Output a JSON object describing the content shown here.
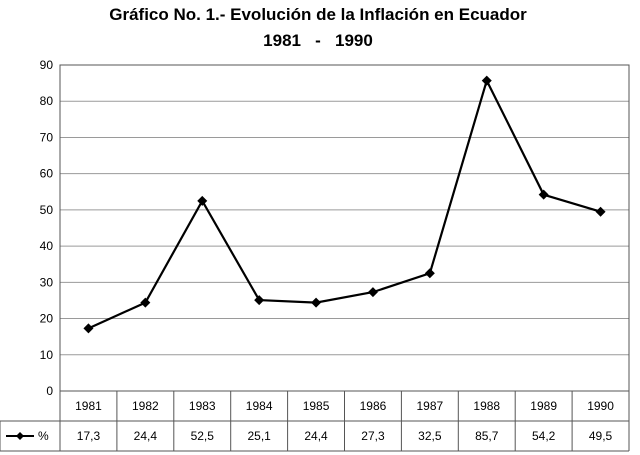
{
  "chart_data": {
    "type": "line",
    "title": "Gráfico No. 1.- Evolución de la Inflación en Ecuador",
    "subtitle": "1981   -   1990",
    "ylim": [
      0,
      90
    ],
    "yticks": [
      "0",
      "10",
      "20",
      "30",
      "40",
      "50",
      "60",
      "70",
      "80",
      "90"
    ],
    "grid": true,
    "legend": "data-table-left",
    "categories": [
      "1981",
      "1982",
      "1983",
      "1984",
      "1985",
      "1986",
      "1987",
      "1988",
      "1989",
      "1990"
    ],
    "series": [
      {
        "name": "%",
        "values": [
          17.3,
          24.4,
          52.5,
          25.1,
          24.4,
          27.3,
          32.5,
          85.7,
          54.2,
          49.5
        ],
        "labels": [
          "17,3",
          "24,4",
          "52,5",
          "25,1",
          "24,4",
          "27,3",
          "32,5",
          "85,7",
          "54,2",
          "49,5"
        ],
        "color": "#000000",
        "marker": "diamond"
      }
    ]
  }
}
